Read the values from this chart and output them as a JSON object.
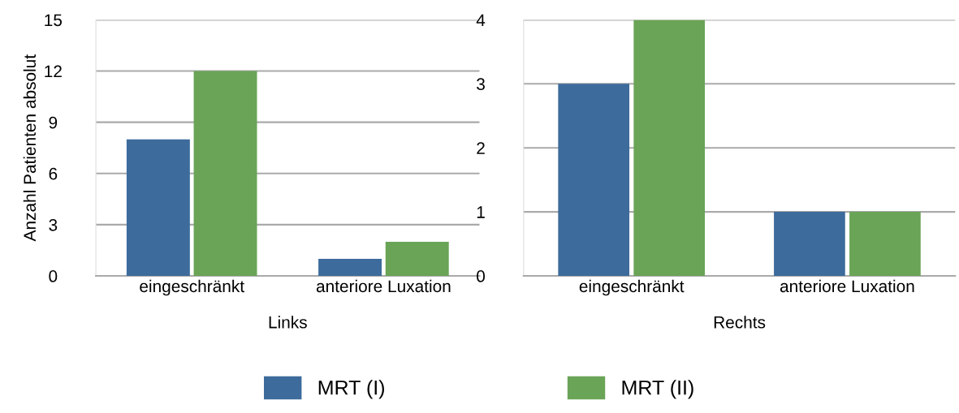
{
  "chart_data": [
    {
      "type": "bar",
      "xlabel": "Links",
      "ylabel": "Anzahl Patienten absolut",
      "categories": [
        "eingeschränkt",
        "anteriore Luxation"
      ],
      "ylim": [
        0,
        15
      ],
      "yticks": [
        0,
        3,
        6,
        9,
        12,
        15
      ],
      "grid": "y",
      "legend": "bottom",
      "series": [
        {
          "name": "MRT (I)",
          "color": "#3d6b9c",
          "values": [
            8,
            1
          ]
        },
        {
          "name": "MRT (II)",
          "color": "#6aa456",
          "values": [
            12,
            2
          ]
        }
      ]
    },
    {
      "type": "bar",
      "xlabel": "Rechts",
      "categories": [
        "eingeschränkt",
        "anteriore Luxation"
      ],
      "ylim": [
        0,
        4
      ],
      "yticks": [
        0,
        1,
        2,
        3,
        4
      ],
      "grid": "y",
      "series": [
        {
          "color": "#3d6b9c",
          "values": [
            3,
            1
          ]
        },
        {
          "color": "#6aa456",
          "values": [
            4,
            1
          ]
        }
      ]
    }
  ]
}
